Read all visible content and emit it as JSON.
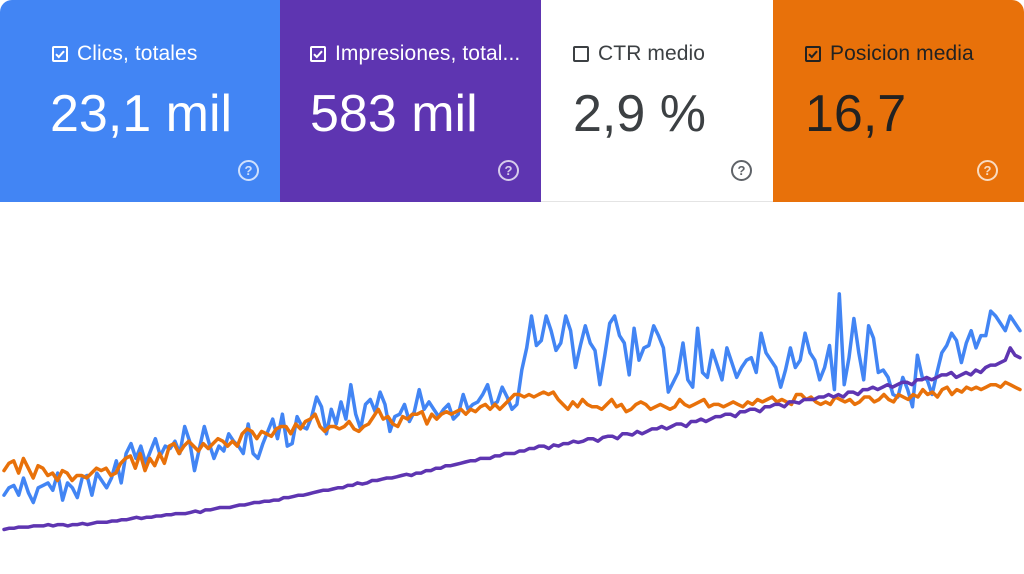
{
  "metrics": [
    {
      "label": "Clics, totales",
      "value": "23,1 mil",
      "checked": true,
      "bg": "#4285f4",
      "fg": "#ffffff",
      "help_icon": "help-circle-icon"
    },
    {
      "label": "Impresiones, total...",
      "value": "583 mil",
      "checked": true,
      "bg": "#5e35b1",
      "fg": "#ffffff",
      "help_icon": "help-circle-icon"
    },
    {
      "label": "CTR medio",
      "value": "2,9 %",
      "checked": false,
      "bg": "#ffffff",
      "fg": "#3c4043",
      "help_icon": "help-circle-icon"
    },
    {
      "label": "Posicion media",
      "value": "16,7",
      "checked": true,
      "bg": "#e8710a",
      "fg": "#222222",
      "help_icon": "help-circle-icon"
    }
  ],
  "help_glyph": "?",
  "chart_data": {
    "type": "line",
    "series": [
      {
        "color": "#4285f4",
        "values": [
          30,
          36,
          38,
          30,
          44,
          32,
          24,
          36,
          38,
          40,
          34,
          48,
          26,
          40,
          36,
          28,
          44,
          46,
          30,
          48,
          42,
          36,
          44,
          58,
          40,
          64,
          72,
          60,
          70,
          56,
          66,
          76,
          62,
          70,
          68,
          74,
          64,
          86,
          74,
          50,
          68,
          86,
          72,
          60,
          70,
          66,
          80,
          74,
          70,
          64,
          88,
          64,
          60,
          72,
          82,
          92,
          76,
          96,
          70,
          72,
          94,
          86,
          84,
          94,
          110,
          102,
          80,
          100,
          88,
          106,
          92,
          120,
          96,
          84,
          104,
          108,
          98,
          114,
          104,
          82,
          94,
          96,
          104,
          90,
          98,
          116,
          100,
          106,
          100,
          94,
          100,
          104,
          92,
          96,
          112,
          100,
          104,
          106,
          112,
          120,
          104,
          106,
          118,
          110,
          100,
          104,
          132,
          150,
          176,
          152,
          156,
          176,
          164,
          148,
          154,
          176,
          164,
          134,
          152,
          168,
          154,
          148,
          120,
          144,
          170,
          176,
          160,
          154,
          128,
          166,
          140,
          150,
          152,
          168,
          160,
          150,
          114,
          122,
          130,
          154,
          124,
          118,
          166,
          130,
          126,
          148,
          136,
          124,
          150,
          138,
          126,
          134,
          140,
          142,
          130,
          162,
          146,
          140,
          134,
          118,
          132,
          150,
          134,
          140,
          162,
          146,
          140,
          124,
          134,
          152,
          116,
          194,
          120,
          142,
          174,
          146,
          124,
          168,
          158,
          130,
          132,
          126,
          112,
          110,
          126,
          116,
          102,
          144,
          126,
          124,
          112,
          130,
          146,
          152,
          162,
          156,
          138,
          154,
          164,
          150,
          160,
          160,
          180,
          176,
          170,
          164,
          176,
          170,
          164
        ]
      },
      {
        "color": "#e8710a",
        "values": [
          50,
          56,
          58,
          48,
          60,
          52,
          44,
          54,
          52,
          46,
          48,
          42,
          50,
          48,
          42,
          46,
          46,
          44,
          48,
          52,
          50,
          52,
          46,
          48,
          56,
          60,
          62,
          52,
          64,
          50,
          60,
          54,
          64,
          56,
          70,
          72,
          64,
          70,
          74,
          70,
          66,
          72,
          68,
          72,
          76,
          74,
          70,
          74,
          70,
          80,
          84,
          82,
          76,
          82,
          80,
          78,
          84,
          86,
          86,
          80,
          88,
          84,
          90,
          92,
          96,
          86,
          82,
          86,
          86,
          84,
          86,
          90,
          84,
          82,
          86,
          88,
          94,
          100,
          92,
          94,
          88,
          86,
          94,
          92,
          96,
          96,
          98,
          88,
          96,
          92,
          96,
          98,
          96,
          98,
          100,
          96,
          100,
          98,
          102,
          104,
          100,
          104,
          100,
          104,
          108,
          112,
          112,
          110,
          112,
          110,
          112,
          114,
          112,
          114,
          108,
          104,
          100,
          106,
          102,
          108,
          104,
          102,
          102,
          100,
          104,
          108,
          102,
          104,
          98,
          100,
          104,
          106,
          104,
          100,
          102,
          104,
          102,
          100,
          102,
          108,
          104,
          102,
          104,
          106,
          108,
          102,
          104,
          104,
          102,
          104,
          106,
          104,
          102,
          106,
          104,
          108,
          106,
          108,
          110,
          106,
          108,
          106,
          104,
          112,
          112,
          108,
          110,
          106,
          104,
          106,
          104,
          110,
          108,
          106,
          108,
          104,
          106,
          110,
          110,
          106,
          108,
          112,
          108,
          106,
          112,
          110,
          108,
          112,
          110,
          116,
          112,
          114,
          110,
          116,
          118,
          112,
          116,
          114,
          118,
          116,
          118,
          116,
          118,
          120,
          120,
          118,
          122,
          120,
          118,
          116
        ]
      },
      {
        "color": "#5e35b1",
        "values": [
          2,
          3,
          3,
          4,
          4,
          4,
          5,
          5,
          5,
          6,
          5,
          6,
          6,
          5,
          6,
          6,
          7,
          6,
          7,
          8,
          8,
          8,
          9,
          9,
          10,
          10,
          11,
          12,
          11,
          12,
          12,
          13,
          13,
          14,
          14,
          15,
          15,
          15,
          16,
          17,
          16,
          18,
          18,
          19,
          20,
          20,
          20,
          21,
          22,
          22,
          23,
          24,
          24,
          25,
          25,
          26,
          26,
          28,
          28,
          29,
          30,
          30,
          31,
          32,
          33,
          34,
          34,
          35,
          36,
          36,
          38,
          38,
          40,
          39,
          40,
          42,
          42,
          43,
          44,
          44,
          45,
          46,
          47,
          46,
          48,
          48,
          50,
          50,
          52,
          52,
          54,
          54,
          55,
          56,
          57,
          58,
          58,
          60,
          60,
          60,
          62,
          62,
          64,
          64,
          64,
          66,
          66,
          68,
          68,
          70,
          70,
          68,
          71,
          70,
          72,
          72,
          74,
          73,
          74,
          76,
          76,
          74,
          77,
          78,
          78,
          76,
          80,
          80,
          79,
          82,
          80,
          82,
          84,
          84,
          86,
          84,
          86,
          88,
          88,
          86,
          90,
          90,
          92,
          90,
          92,
          94,
          94,
          96,
          96,
          94,
          98,
          98,
          100,
          100,
          98,
          102,
          102,
          104,
          104,
          102,
          106,
          106,
          105,
          108,
          108,
          108,
          110,
          110,
          112,
          110,
          112,
          110,
          114,
          114,
          112,
          116,
          116,
          118,
          116,
          118,
          120,
          118,
          120,
          122,
          122,
          120,
          124,
          124,
          126,
          124,
          126,
          128,
          128,
          130,
          126,
          128,
          130,
          128,
          132,
          130,
          134,
          136,
          136,
          138,
          140,
          150,
          144,
          142
        ]
      }
    ],
    "ylim": [
      0,
      220
    ],
    "grid": false,
    "legend": "none"
  }
}
